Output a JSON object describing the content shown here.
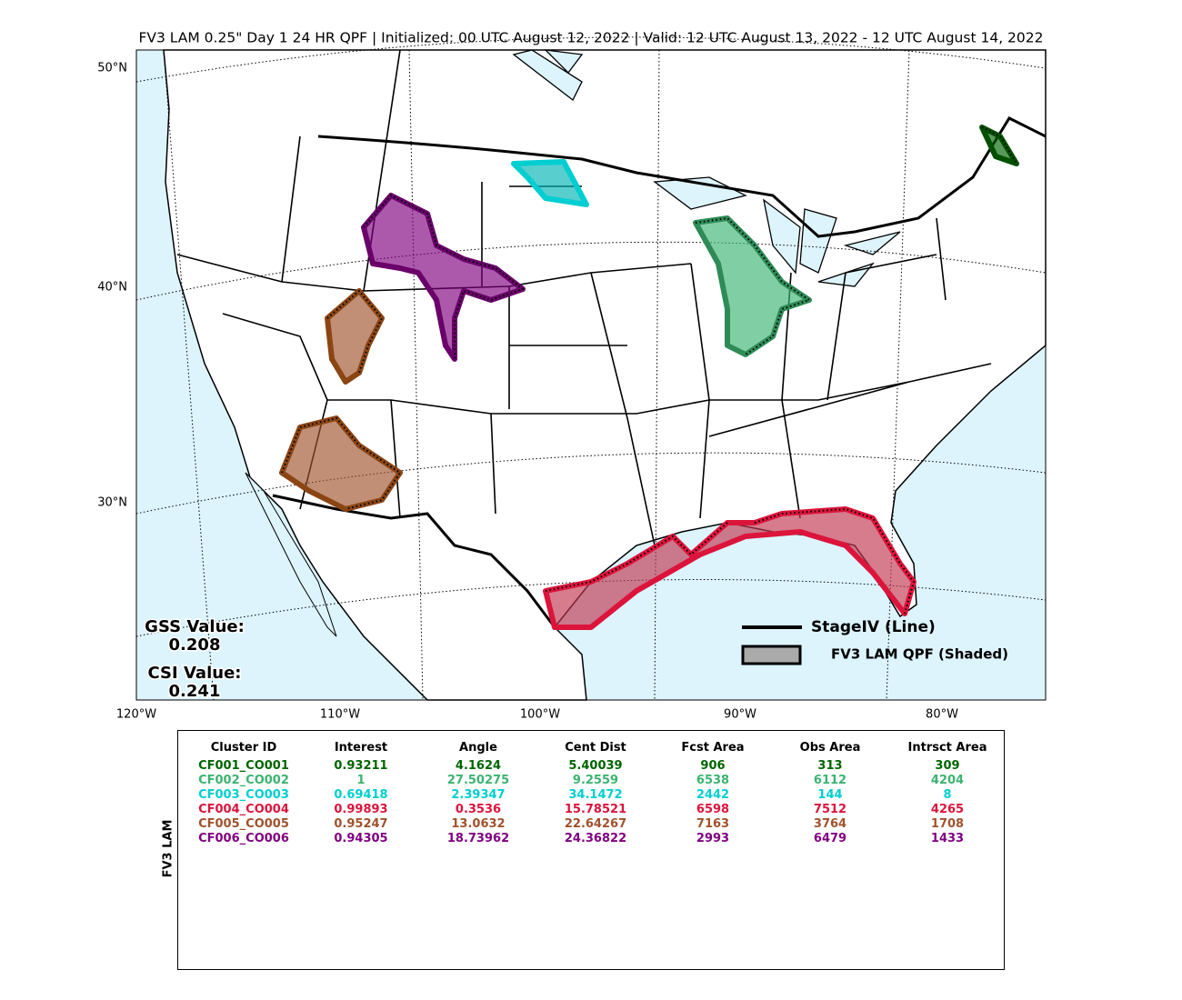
{
  "title": "FV3 LAM 0.25\" Day 1 24 HR QPF | Initialized: 00 UTC August 12, 2022 | Valid: 12 UTC August 13, 2022 - 12 UTC August 14, 2022",
  "map": {
    "lat_labels": [
      "50°N",
      "40°N",
      "30°N"
    ],
    "lon_labels": [
      "120°W",
      "110°W",
      "100°W",
      "90°W",
      "80°W"
    ],
    "gss_label": "GSS Value:",
    "gss_value": "0.208",
    "csi_label": "CSI Value:",
    "csi_value": "0.241",
    "legend": [
      "StageIV (Line)",
      "FV3 LAM QPF (Shaded)"
    ]
  },
  "table": {
    "side_label": "FV3 LAM",
    "columns": [
      "Cluster ID",
      "Interest",
      "Angle",
      "Cent Dist",
      "Fcst Area",
      "Obs Area",
      "Intrsct Area"
    ],
    "rows": [
      [
        "CF001_CO001",
        "0.93211",
        "4.1624",
        "5.40039",
        "906",
        "313",
        "309"
      ],
      [
        "CF002_CO002",
        "1",
        "27.50275",
        "9.2559",
        "6538",
        "6112",
        "4204"
      ],
      [
        "CF003_CO003",
        "0.69418",
        "2.39347",
        "34.1472",
        "2442",
        "144",
        "8"
      ],
      [
        "CF004_CO004",
        "0.99893",
        "0.3536",
        "15.78521",
        "6598",
        "7512",
        "4265"
      ],
      [
        "CF005_CO005",
        "0.95247",
        "13.0632",
        "22.64267",
        "7163",
        "3764",
        "1708"
      ],
      [
        "CF006_CO006",
        "0.94305",
        "18.73962",
        "24.36822",
        "2993",
        "6479",
        "1433"
      ]
    ]
  }
}
